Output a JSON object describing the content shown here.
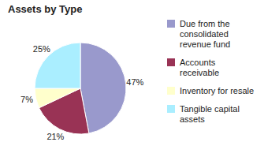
{
  "chart_data": {
    "type": "pie",
    "title": "Assets by Type",
    "categories": [
      "Due from the\nconsolidated\nrevenue fund",
      "Accounts\nreceivable",
      "Inventory for resale",
      "Tangible capital\nassets"
    ],
    "values": [
      47,
      21,
      7,
      25
    ],
    "value_labels": [
      "47%",
      "21%",
      "7%",
      "25%"
    ],
    "colors": [
      "#9999cc",
      "#993355",
      "#ffffcc",
      "#aaeeff"
    ],
    "data_labels": true,
    "legend": "right"
  }
}
